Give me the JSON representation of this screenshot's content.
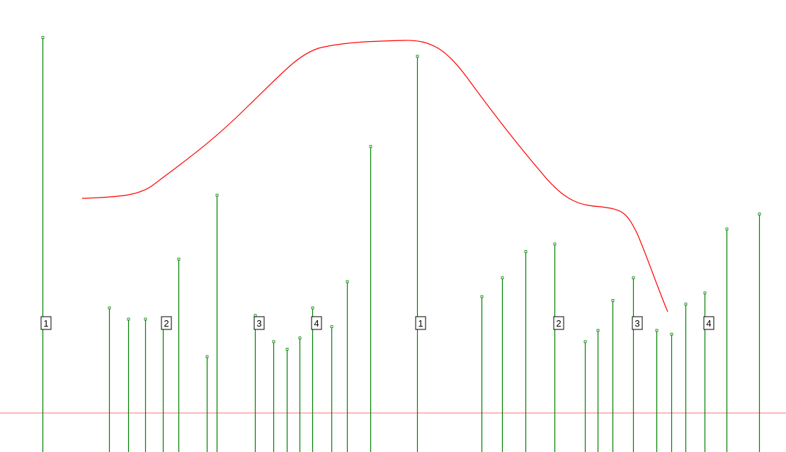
{
  "chart_data": {
    "type": "stem",
    "title": "",
    "xlabel": "",
    "ylabel": "",
    "grid": false,
    "stem_color": "#008000",
    "curve_color": "#ff0000",
    "baseline_color": "#ff7070",
    "values": [
      1.0,
      0.28,
      0.25,
      0.25,
      0.24,
      0.41,
      0.15,
      0.58,
      0.26,
      0.19,
      0.17,
      0.2,
      0.28,
      0.23,
      0.35,
      0.71,
      0.95,
      0.31,
      0.36,
      0.43,
      0.45,
      0.19,
      0.22,
      0.3,
      0.36,
      0.22,
      0.21,
      0.29,
      0.32,
      0.49,
      0.53
    ],
    "beat_labels": [
      "1",
      "2",
      "3",
      "4",
      "1",
      "2",
      "3",
      "4"
    ]
  }
}
